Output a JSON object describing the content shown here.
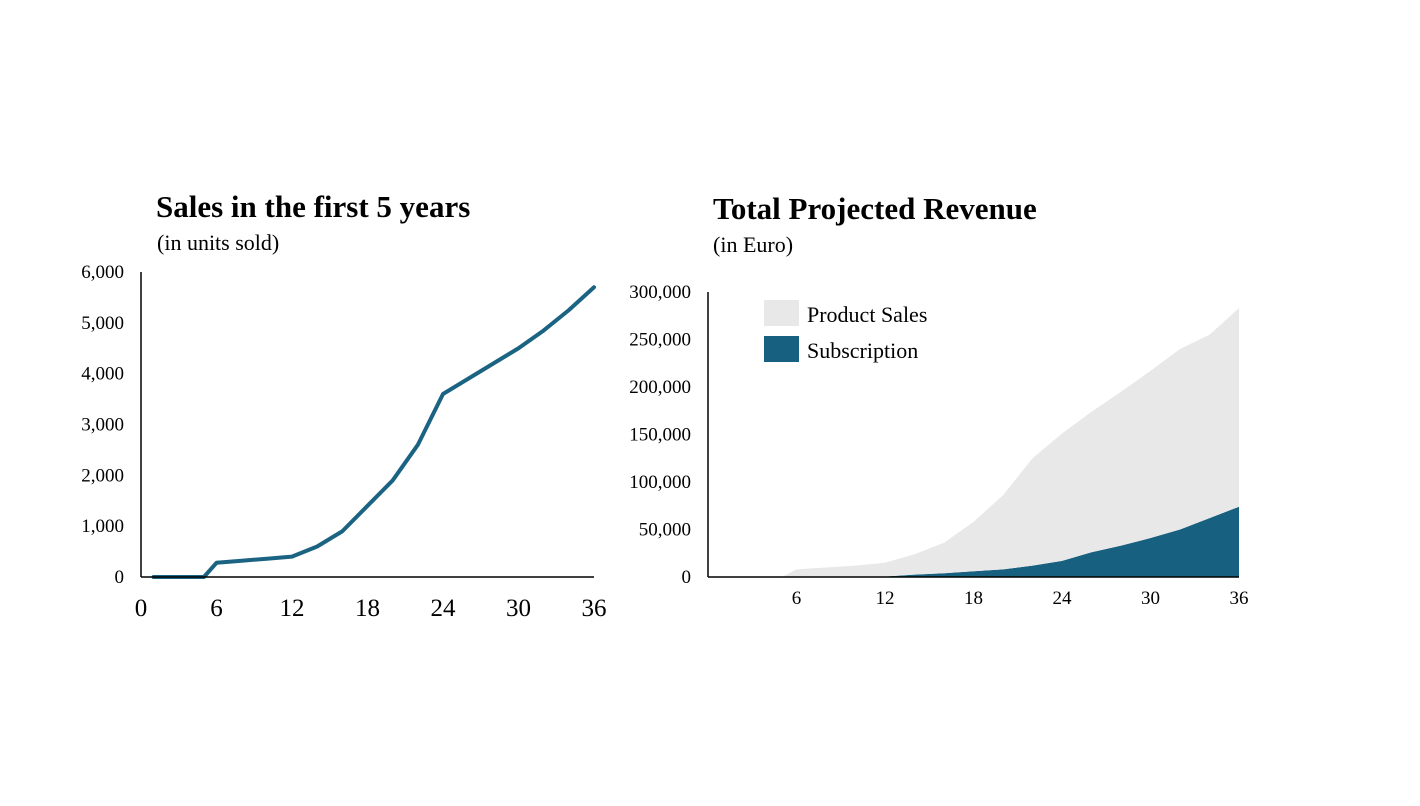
{
  "chart_data": [
    {
      "type": "line",
      "title": "Sales in the first 5 years",
      "subtitle": "(in units sold)",
      "xlim": [
        0,
        36
      ],
      "ylim": [
        0,
        6000
      ],
      "xticks": [
        "0",
        "6",
        "12",
        "18",
        "24",
        "30",
        "36"
      ],
      "yticks": [
        "0",
        "1,000",
        "2,000",
        "3,000",
        "4,000",
        "5,000",
        "6,000"
      ],
      "grid": false,
      "series": [
        {
          "color": "#1a6382",
          "x": [
            1,
            2,
            3,
            4,
            5,
            6,
            8,
            10,
            12,
            14,
            16,
            18,
            20,
            22,
            24,
            26,
            28,
            30,
            32,
            34,
            36
          ],
          "y": [
            0,
            0,
            0,
            0,
            0,
            280,
            320,
            360,
            400,
            600,
            900,
            1400,
            1900,
            2600,
            3600,
            3900,
            4200,
            4500,
            4850,
            5250,
            5700
          ]
        }
      ]
    },
    {
      "type": "area",
      "stacked": true,
      "title": "Total Projected Revenue",
      "subtitle": "(in Euro)",
      "xlim": [
        0,
        36
      ],
      "ylim": [
        0,
        300000
      ],
      "xticks": [
        "6",
        "12",
        "18",
        "24",
        "30",
        "36"
      ],
      "yticks": [
        "0",
        "50,000",
        "100,000",
        "150,000",
        "200,000",
        "250,000",
        "300,000"
      ],
      "grid": false,
      "legend_position": "top-left",
      "x": [
        0,
        4,
        5,
        6,
        8,
        10,
        12,
        14,
        16,
        18,
        20,
        22,
        24,
        26,
        28,
        30,
        32,
        34,
        36
      ],
      "series": [
        {
          "name": "Subscription",
          "color": "#17607f",
          "values": [
            0,
            0,
            0,
            0,
            0,
            0,
            500,
            2500,
            4000,
            6000,
            8000,
            12000,
            17000,
            26000,
            33000,
            41000,
            50000,
            62000,
            74000
          ]
        },
        {
          "name": "Product Sales",
          "color": "#e8e8e8",
          "values": [
            0,
            0,
            0,
            8000,
            10000,
            12000,
            14500,
            21500,
            32000,
            52000,
            78000,
            113000,
            134000,
            148000,
            162000,
            176000,
            190000,
            193000,
            209000
          ]
        }
      ]
    }
  ]
}
